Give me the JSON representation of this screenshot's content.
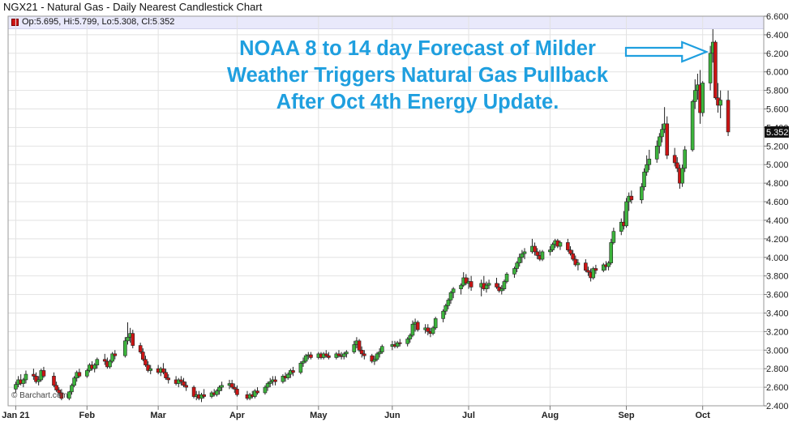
{
  "title": "NGX21 - Natural Gas - Daily Nearest Candlestick Chart",
  "legend": {
    "text": "Op:5.695, Hi:5.799, Lo:5.308, Cl:5.352",
    "swatch_color": "#cc1414"
  },
  "annotation": {
    "lines": [
      "NOAA 8 to 14 day Forecast of Milder",
      "Weather Triggers Natural Gas Pullback",
      "After Oct 4th Energy Update."
    ],
    "color": "#1f9fdf"
  },
  "watermark": "© Barchart.com",
  "chart_data": {
    "type": "candlestick",
    "xlabel": "",
    "ylabel": "",
    "ylim": [
      2.4,
      6.6
    ],
    "yticks": [
      "2.400",
      "2.600",
      "2.800",
      "3.000",
      "3.200",
      "3.400",
      "3.600",
      "3.800",
      "4.000",
      "4.200",
      "4.400",
      "4.600",
      "4.800",
      "5.000",
      "5.200",
      "5.400",
      "5.600",
      "5.800",
      "6.000",
      "6.200",
      "6.400",
      "6.600"
    ],
    "xticks": [
      "Jan 21",
      "Feb",
      "Mar",
      "Apr",
      "May",
      "Jun",
      "Jul",
      "Aug",
      "Sep",
      "Oct"
    ],
    "last_price_label": "5.352",
    "up_color": "#3cb43c",
    "down_color": "#cc1414",
    "grid": true,
    "candles": [
      [
        "2021-01-04",
        2.58,
        2.66,
        2.54,
        2.63
      ],
      [
        "2021-01-05",
        2.63,
        2.72,
        2.6,
        2.68
      ],
      [
        "2021-01-06",
        2.68,
        2.74,
        2.62,
        2.64
      ],
      [
        "2021-01-07",
        2.64,
        2.7,
        2.6,
        2.68
      ],
      [
        "2021-01-08",
        2.68,
        2.78,
        2.64,
        2.74
      ],
      [
        "2021-01-11",
        2.74,
        2.8,
        2.68,
        2.72
      ],
      [
        "2021-01-12",
        2.72,
        2.76,
        2.64,
        2.66
      ],
      [
        "2021-01-13",
        2.66,
        2.72,
        2.62,
        2.68
      ],
      [
        "2021-01-14",
        2.68,
        2.8,
        2.66,
        2.78
      ],
      [
        "2021-01-15",
        2.78,
        2.82,
        2.7,
        2.72
      ],
      [
        "2021-01-19",
        2.72,
        2.76,
        2.6,
        2.62
      ],
      [
        "2021-01-20",
        2.62,
        2.66,
        2.55,
        2.57
      ],
      [
        "2021-01-21",
        2.57,
        2.6,
        2.5,
        2.54
      ],
      [
        "2021-01-22",
        2.54,
        2.58,
        2.46,
        2.48
      ],
      [
        "2021-01-25",
        2.48,
        2.56,
        2.46,
        2.55
      ],
      [
        "2021-01-26",
        2.55,
        2.64,
        2.52,
        2.62
      ],
      [
        "2021-01-27",
        2.62,
        2.72,
        2.6,
        2.7
      ],
      [
        "2021-01-28",
        2.7,
        2.78,
        2.66,
        2.76
      ],
      [
        "2021-01-29",
        2.76,
        2.8,
        2.7,
        2.72
      ],
      [
        "2021-02-01",
        2.72,
        2.8,
        2.7,
        2.78
      ],
      [
        "2021-02-02",
        2.78,
        2.86,
        2.76,
        2.84
      ],
      [
        "2021-02-03",
        2.84,
        2.88,
        2.78,
        2.8
      ],
      [
        "2021-02-04",
        2.8,
        2.86,
        2.76,
        2.84
      ],
      [
        "2021-02-05",
        2.84,
        2.92,
        2.8,
        2.9
      ],
      [
        "2021-02-08",
        2.9,
        2.96,
        2.84,
        2.88
      ],
      [
        "2021-02-09",
        2.88,
        2.92,
        2.8,
        2.82
      ],
      [
        "2021-02-10",
        2.82,
        2.9,
        2.8,
        2.88
      ],
      [
        "2021-02-11",
        2.88,
        2.98,
        2.86,
        2.96
      ],
      [
        "2021-02-12",
        2.96,
        3.0,
        2.9,
        2.94
      ],
      [
        "2021-02-16",
        2.94,
        3.14,
        2.92,
        3.1
      ],
      [
        "2021-02-17",
        3.1,
        3.3,
        3.06,
        3.14
      ],
      [
        "2021-02-18",
        3.14,
        3.24,
        3.08,
        3.18
      ],
      [
        "2021-02-19",
        3.18,
        3.22,
        3.02,
        3.05
      ],
      [
        "2021-02-22",
        3.05,
        3.08,
        2.96,
        2.98
      ],
      [
        "2021-02-23",
        2.98,
        3.02,
        2.88,
        2.9
      ],
      [
        "2021-02-24",
        2.9,
        2.94,
        2.82,
        2.84
      ],
      [
        "2021-02-25",
        2.84,
        2.88,
        2.76,
        2.78
      ],
      [
        "2021-02-26",
        2.78,
        2.84,
        2.74,
        2.8
      ],
      [
        "2021-03-01",
        2.8,
        2.84,
        2.74,
        2.76
      ],
      [
        "2021-03-02",
        2.76,
        2.82,
        2.72,
        2.8
      ],
      [
        "2021-03-03",
        2.8,
        2.86,
        2.74,
        2.76
      ],
      [
        "2021-03-04",
        2.76,
        2.8,
        2.68,
        2.7
      ],
      [
        "2021-03-05",
        2.7,
        2.74,
        2.64,
        2.68
      ],
      [
        "2021-03-08",
        2.68,
        2.72,
        2.62,
        2.64
      ],
      [
        "2021-03-09",
        2.64,
        2.7,
        2.6,
        2.68
      ],
      [
        "2021-03-10",
        2.68,
        2.72,
        2.62,
        2.66
      ],
      [
        "2021-03-11",
        2.66,
        2.7,
        2.6,
        2.62
      ],
      [
        "2021-03-12",
        2.62,
        2.66,
        2.56,
        2.6
      ],
      [
        "2021-03-15",
        2.6,
        2.62,
        2.48,
        2.5
      ],
      [
        "2021-03-16",
        2.5,
        2.56,
        2.46,
        2.52
      ],
      [
        "2021-03-17",
        2.52,
        2.56,
        2.46,
        2.48
      ],
      [
        "2021-03-18",
        2.48,
        2.54,
        2.44,
        2.52
      ],
      [
        "2021-03-19",
        2.52,
        2.58,
        2.48,
        2.5
      ],
      [
        "2021-03-22",
        2.5,
        2.56,
        2.48,
        2.54
      ],
      [
        "2021-03-23",
        2.54,
        2.58,
        2.5,
        2.52
      ],
      [
        "2021-03-24",
        2.52,
        2.58,
        2.5,
        2.56
      ],
      [
        "2021-03-25",
        2.56,
        2.62,
        2.52,
        2.6
      ],
      [
        "2021-03-26",
        2.6,
        2.66,
        2.56,
        2.62
      ],
      [
        "2021-03-29",
        2.62,
        2.68,
        2.58,
        2.64
      ],
      [
        "2021-03-30",
        2.64,
        2.68,
        2.58,
        2.6
      ],
      [
        "2021-03-31",
        2.6,
        2.64,
        2.54,
        2.58
      ],
      [
        "2021-04-01",
        2.58,
        2.62,
        2.5,
        2.52
      ],
      [
        "2021-04-05",
        2.52,
        2.56,
        2.46,
        2.48
      ],
      [
        "2021-04-06",
        2.48,
        2.54,
        2.46,
        2.52
      ],
      [
        "2021-04-07",
        2.52,
        2.56,
        2.48,
        2.5
      ],
      [
        "2021-04-08",
        2.5,
        2.58,
        2.48,
        2.56
      ],
      [
        "2021-04-09",
        2.56,
        2.6,
        2.52,
        2.54
      ],
      [
        "2021-04-12",
        2.54,
        2.62,
        2.52,
        2.6
      ],
      [
        "2021-04-13",
        2.6,
        2.66,
        2.56,
        2.64
      ],
      [
        "2021-04-14",
        2.64,
        2.7,
        2.6,
        2.66
      ],
      [
        "2021-04-15",
        2.66,
        2.72,
        2.62,
        2.68
      ],
      [
        "2021-04-16",
        2.68,
        2.72,
        2.62,
        2.66
      ],
      [
        "2021-04-19",
        2.66,
        2.74,
        2.64,
        2.72
      ],
      [
        "2021-04-20",
        2.72,
        2.76,
        2.66,
        2.7
      ],
      [
        "2021-04-21",
        2.7,
        2.76,
        2.68,
        2.74
      ],
      [
        "2021-04-22",
        2.74,
        2.8,
        2.7,
        2.78
      ],
      [
        "2021-04-23",
        2.78,
        2.82,
        2.72,
        2.76
      ],
      [
        "2021-04-26",
        2.76,
        2.88,
        2.74,
        2.86
      ],
      [
        "2021-04-27",
        2.86,
        2.92,
        2.82,
        2.88
      ],
      [
        "2021-04-28",
        2.88,
        2.96,
        2.86,
        2.94
      ],
      [
        "2021-04-29",
        2.94,
        2.98,
        2.9,
        2.95
      ],
      [
        "2021-04-30",
        2.95,
        2.98,
        2.9,
        2.92
      ],
      [
        "2021-05-03",
        2.92,
        2.98,
        2.9,
        2.96
      ],
      [
        "2021-05-04",
        2.96,
        2.98,
        2.9,
        2.92
      ],
      [
        "2021-05-05",
        2.92,
        2.98,
        2.9,
        2.96
      ],
      [
        "2021-05-06",
        2.96,
        3.0,
        2.92,
        2.94
      ],
      [
        "2021-05-07",
        2.94,
        2.98,
        2.9,
        2.92
      ],
      [
        "2021-05-10",
        2.92,
        2.98,
        2.9,
        2.96
      ],
      [
        "2021-05-11",
        2.96,
        3.0,
        2.92,
        2.94
      ],
      [
        "2021-05-12",
        2.94,
        2.98,
        2.9,
        2.93
      ],
      [
        "2021-05-13",
        2.93,
        2.98,
        2.9,
        2.96
      ],
      [
        "2021-05-14",
        2.96,
        3.0,
        2.92,
        2.98
      ],
      [
        "2021-05-17",
        2.98,
        3.1,
        2.96,
        3.06
      ],
      [
        "2021-05-18",
        3.06,
        3.14,
        3.02,
        3.1
      ],
      [
        "2021-05-19",
        3.1,
        3.12,
        2.98,
        3.0
      ],
      [
        "2021-05-20",
        3.0,
        3.04,
        2.92,
        2.96
      ],
      [
        "2021-05-21",
        2.96,
        3.0,
        2.9,
        2.94
      ],
      [
        "2021-05-24",
        2.94,
        2.96,
        2.86,
        2.88
      ],
      [
        "2021-05-25",
        2.88,
        2.94,
        2.84,
        2.9
      ],
      [
        "2021-05-26",
        2.9,
        2.98,
        2.88,
        2.96
      ],
      [
        "2021-05-27",
        2.96,
        3.02,
        2.92,
        2.98
      ],
      [
        "2021-05-28",
        2.98,
        3.06,
        2.96,
        3.04
      ],
      [
        "2021-06-01",
        3.04,
        3.1,
        3.0,
        3.06
      ],
      [
        "2021-06-02",
        3.06,
        3.1,
        3.02,
        3.04
      ],
      [
        "2021-06-03",
        3.04,
        3.1,
        3.02,
        3.08
      ],
      [
        "2021-06-04",
        3.08,
        3.12,
        3.04,
        3.07
      ],
      [
        "2021-06-07",
        3.07,
        3.14,
        3.04,
        3.12
      ],
      [
        "2021-06-08",
        3.12,
        3.18,
        3.08,
        3.16
      ],
      [
        "2021-06-09",
        3.16,
        3.32,
        3.14,
        3.28
      ],
      [
        "2021-06-10",
        3.28,
        3.34,
        3.2,
        3.3
      ],
      [
        "2021-06-11",
        3.3,
        3.32,
        3.2,
        3.22
      ],
      [
        "2021-06-14",
        3.22,
        3.28,
        3.18,
        3.24
      ],
      [
        "2021-06-15",
        3.24,
        3.28,
        3.16,
        3.2
      ],
      [
        "2021-06-16",
        3.2,
        3.24,
        3.14,
        3.18
      ],
      [
        "2021-06-17",
        3.18,
        3.26,
        3.16,
        3.24
      ],
      [
        "2021-06-18",
        3.24,
        3.36,
        3.22,
        3.34
      ],
      [
        "2021-06-21",
        3.34,
        3.44,
        3.3,
        3.42
      ],
      [
        "2021-06-22",
        3.42,
        3.5,
        3.38,
        3.48
      ],
      [
        "2021-06-23",
        3.48,
        3.56,
        3.44,
        3.54
      ],
      [
        "2021-06-24",
        3.54,
        3.64,
        3.5,
        3.62
      ],
      [
        "2021-06-25",
        3.62,
        3.68,
        3.56,
        3.66
      ],
      [
        "2021-06-28",
        3.66,
        3.72,
        3.6,
        3.7
      ],
      [
        "2021-06-29",
        3.7,
        3.84,
        3.68,
        3.78
      ],
      [
        "2021-06-30",
        3.78,
        3.82,
        3.7,
        3.72
      ],
      [
        "2021-07-01",
        3.72,
        3.78,
        3.66,
        3.74
      ],
      [
        "2021-07-02",
        3.74,
        3.8,
        3.64,
        3.68
      ],
      [
        "2021-07-06",
        3.68,
        3.76,
        3.58,
        3.72
      ],
      [
        "2021-07-07",
        3.72,
        3.8,
        3.64,
        3.66
      ],
      [
        "2021-07-08",
        3.66,
        3.74,
        3.62,
        3.7
      ],
      [
        "2021-07-09",
        3.7,
        3.76,
        3.66,
        3.72
      ],
      [
        "2021-07-12",
        3.72,
        3.78,
        3.66,
        3.68
      ],
      [
        "2021-07-13",
        3.68,
        3.72,
        3.62,
        3.64
      ],
      [
        "2021-07-14",
        3.64,
        3.7,
        3.6,
        3.66
      ],
      [
        "2021-07-15",
        3.66,
        3.76,
        3.64,
        3.74
      ],
      [
        "2021-07-16",
        3.74,
        3.84,
        3.72,
        3.82
      ],
      [
        "2021-07-19",
        3.82,
        3.9,
        3.78,
        3.88
      ],
      [
        "2021-07-20",
        3.88,
        3.96,
        3.84,
        3.94
      ],
      [
        "2021-07-21",
        3.94,
        4.04,
        3.9,
        4.0
      ],
      [
        "2021-07-22",
        4.0,
        4.08,
        3.94,
        4.04
      ],
      [
        "2021-07-23",
        4.04,
        4.1,
        3.98,
        4.06
      ],
      [
        "2021-07-26",
        4.06,
        4.2,
        4.04,
        4.12
      ],
      [
        "2021-07-27",
        4.12,
        4.16,
        4.02,
        4.06
      ],
      [
        "2021-07-28",
        4.06,
        4.1,
        3.98,
        4.02
      ],
      [
        "2021-07-29",
        4.02,
        4.08,
        3.96,
        3.98
      ],
      [
        "2021-07-30",
        3.98,
        4.08,
        3.96,
        4.06
      ],
      [
        "2021-08-02",
        4.06,
        4.12,
        4.02,
        4.08
      ],
      [
        "2021-08-03",
        4.08,
        4.16,
        4.06,
        4.14
      ],
      [
        "2021-08-04",
        4.14,
        4.2,
        4.1,
        4.18
      ],
      [
        "2021-08-05",
        4.18,
        4.2,
        4.1,
        4.12
      ],
      [
        "2021-08-06",
        4.12,
        4.18,
        4.08,
        4.16
      ],
      [
        "2021-08-09",
        4.16,
        4.2,
        4.06,
        4.08
      ],
      [
        "2021-08-10",
        4.08,
        4.12,
        4.02,
        4.04
      ],
      [
        "2021-08-11",
        4.04,
        4.08,
        3.96,
        3.98
      ],
      [
        "2021-08-12",
        3.98,
        4.02,
        3.9,
        3.92
      ],
      [
        "2021-08-13",
        3.92,
        3.98,
        3.86,
        3.94
      ],
      [
        "2021-08-16",
        3.94,
        3.98,
        3.84,
        3.86
      ],
      [
        "2021-08-17",
        3.86,
        3.9,
        3.8,
        3.84
      ],
      [
        "2021-08-18",
        3.84,
        3.88,
        3.74,
        3.78
      ],
      [
        "2021-08-19",
        3.78,
        3.9,
        3.76,
        3.88
      ],
      [
        "2021-08-20",
        3.88,
        3.92,
        3.82,
        3.86
      ],
      [
        "2021-08-23",
        3.86,
        3.94,
        3.84,
        3.92
      ],
      [
        "2021-08-24",
        3.92,
        3.96,
        3.86,
        3.9
      ],
      [
        "2021-08-25",
        3.9,
        3.96,
        3.86,
        3.94
      ],
      [
        "2021-08-26",
        3.94,
        4.2,
        3.92,
        4.16
      ],
      [
        "2021-08-27",
        4.16,
        4.32,
        4.14,
        4.28
      ],
      [
        "2021-08-30",
        4.28,
        4.42,
        4.24,
        4.38
      ],
      [
        "2021-08-31",
        4.38,
        4.5,
        4.3,
        4.34
      ],
      [
        "2021-09-01",
        4.34,
        4.64,
        4.32,
        4.6
      ],
      [
        "2021-09-02",
        4.6,
        4.7,
        4.5,
        4.66
      ],
      [
        "2021-09-03",
        4.66,
        4.72,
        4.58,
        4.62
      ],
      [
        "2021-09-07",
        4.62,
        4.8,
        4.58,
        4.76
      ],
      [
        "2021-09-08",
        4.76,
        4.96,
        4.72,
        4.92
      ],
      [
        "2021-09-09",
        4.92,
        5.1,
        4.88,
        5.0
      ],
      [
        "2021-09-10",
        5.0,
        5.16,
        4.94,
        5.06
      ],
      [
        "2021-09-13",
        5.06,
        5.26,
        5.02,
        5.2
      ],
      [
        "2021-09-14",
        5.2,
        5.34,
        5.12,
        5.3
      ],
      [
        "2021-09-15",
        5.3,
        5.44,
        5.24,
        5.38
      ],
      [
        "2021-09-16",
        5.38,
        5.62,
        5.34,
        5.44
      ],
      [
        "2021-09-17",
        5.44,
        5.52,
        5.06,
        5.1
      ],
      [
        "2021-09-20",
        5.1,
        5.18,
        4.98,
        5.02
      ],
      [
        "2021-09-21",
        5.02,
        5.08,
        4.92,
        4.96
      ],
      [
        "2021-09-22",
        4.96,
        5.0,
        4.74,
        4.8
      ],
      [
        "2021-09-23",
        4.8,
        5.0,
        4.76,
        4.96
      ],
      [
        "2021-09-24",
        4.96,
        5.2,
        4.92,
        5.16
      ],
      [
        "2021-09-27",
        5.16,
        5.7,
        5.14,
        5.68
      ],
      [
        "2021-09-28",
        5.68,
        5.92,
        5.6,
        5.8
      ],
      [
        "2021-09-29",
        5.8,
        5.98,
        5.7,
        5.86
      ],
      [
        "2021-09-30",
        5.86,
        6.02,
        5.44,
        5.56
      ],
      [
        "2021-10-01",
        5.56,
        5.9,
        5.52,
        5.88
      ],
      [
        "2021-10-04",
        5.88,
        6.28,
        5.8,
        6.2
      ],
      [
        "2021-10-05",
        6.2,
        6.46,
        6.1,
        6.32
      ],
      [
        "2021-10-06",
        6.32,
        6.34,
        5.7,
        5.72
      ],
      [
        "2021-10-07",
        5.72,
        5.88,
        5.56,
        5.64
      ],
      [
        "2021-10-08",
        5.64,
        5.8,
        5.5,
        5.695
      ],
      [
        "2021-10-11",
        5.695,
        5.799,
        5.308,
        5.352
      ]
    ]
  }
}
